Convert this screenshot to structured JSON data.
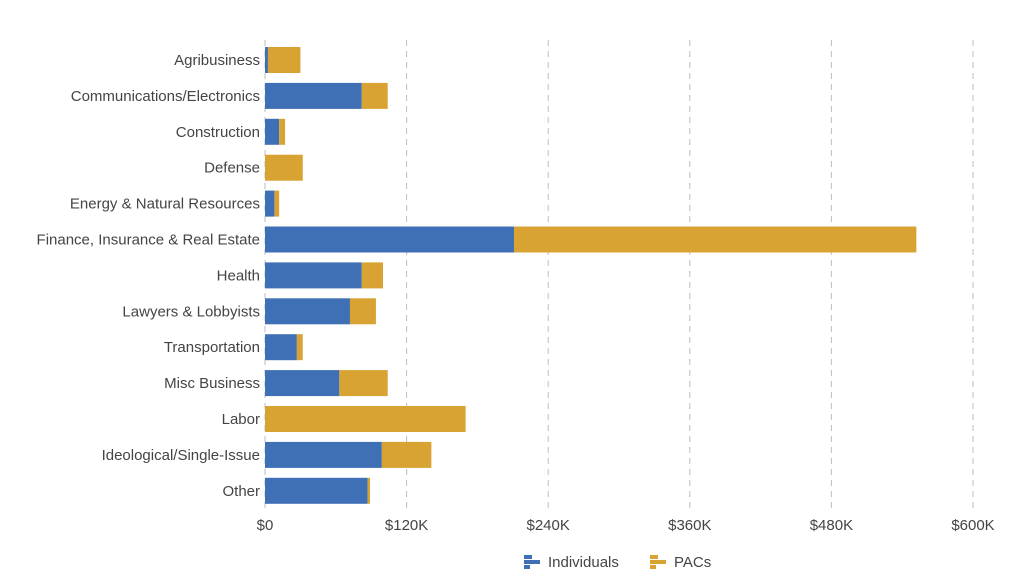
{
  "chart_data": {
    "type": "bar",
    "orientation": "horizontal",
    "stacked": true,
    "categories": [
      "Agribusiness",
      "Communications/Electronics",
      "Construction",
      "Defense",
      "Energy & Natural Resources",
      "Finance, Insurance & Real Estate",
      "Health",
      "Lawyers & Lobbyists",
      "Transportation",
      "Misc Business",
      "Labor",
      "Ideological/Single-Issue",
      "Other"
    ],
    "series": [
      {
        "name": "Individuals",
        "color": "#3f6fb5",
        "values": [
          2500,
          82000,
          12000,
          0,
          8000,
          211000,
          82000,
          72000,
          27000,
          63000,
          0,
          99000,
          87000
        ]
      },
      {
        "name": "PACs",
        "color": "#d9a334",
        "values": [
          27500,
          22000,
          5000,
          32000,
          4000,
          341000,
          18000,
          22000,
          5000,
          41000,
          170000,
          42000,
          2000
        ]
      }
    ],
    "xlim": [
      0,
      600000
    ],
    "x_ticks": [
      0,
      120000,
      240000,
      360000,
      480000,
      600000
    ],
    "x_tick_labels": [
      "$0",
      "$120K",
      "$240K",
      "$360K",
      "$480K",
      "$600K"
    ],
    "xlabel": "",
    "ylabel": "",
    "title": "",
    "grid": "vertical dashed",
    "legend_position": "bottom-center"
  }
}
